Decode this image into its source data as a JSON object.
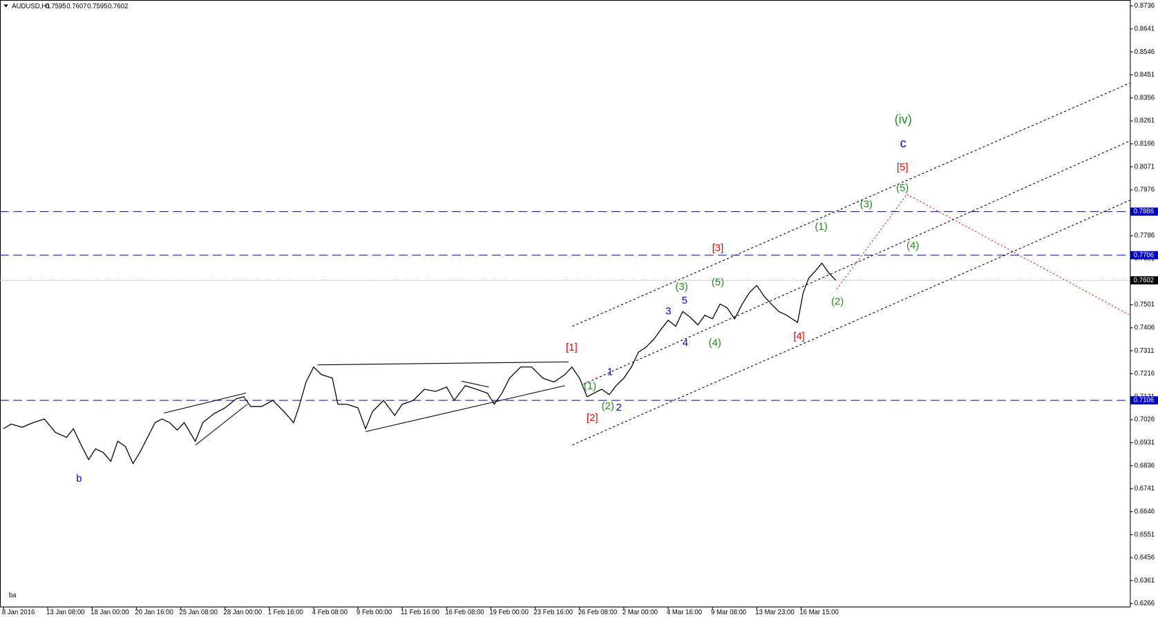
{
  "header": {
    "symbol": "AUDUSD,H1",
    "quote": [
      0.7595,
      0.7607,
      0.7595,
      0.7602
    ]
  },
  "footer": {
    "text": "ba"
  },
  "chart_data": {
    "type": "line",
    "x": [
      0,
      11,
      27,
      43,
      59,
      75,
      91,
      101,
      112,
      123,
      133,
      144,
      155,
      165,
      176,
      187,
      197,
      208,
      219,
      229,
      240,
      251,
      261,
      277,
      288,
      304,
      320,
      336,
      347,
      357,
      373,
      389,
      405,
      419,
      427,
      437,
      448,
      459,
      475,
      483,
      496,
      512,
      523,
      533,
      549,
      565,
      576,
      592,
      608,
      624,
      640,
      651,
      667,
      683,
      699,
      709,
      720,
      731,
      747,
      763,
      779,
      795,
      811,
      821,
      832,
      843,
      853,
      864,
      875,
      885,
      896,
      907,
      917,
      928,
      939,
      949,
      960,
      971,
      981,
      992,
      1003,
      1013,
      1024,
      1035,
      1045,
      1056,
      1067,
      1077,
      1088,
      1099,
      1109,
      1120,
      1131,
      1147,
      1155,
      1163,
      1173,
      1182,
      1192,
      1202
    ],
    "series": [
      {
        "name": "AUDUSD,H1",
        "color": "#000000",
        "values": [
          0.6989,
          0.7008,
          0.6995,
          0.7014,
          0.7029,
          0.6974,
          0.6953,
          0.6989,
          0.6922,
          0.6861,
          0.6906,
          0.6891,
          0.6854,
          0.6937,
          0.6916,
          0.6845,
          0.6891,
          0.6953,
          0.7014,
          0.7029,
          0.7014,
          0.6983,
          0.7014,
          0.6937,
          0.7014,
          0.7051,
          0.7075,
          0.7112,
          0.7121,
          0.7081,
          0.7081,
          0.7106,
          0.706,
          0.7014,
          0.7081,
          0.7182,
          0.7244,
          0.7213,
          0.7198,
          0.709,
          0.709,
          0.7075,
          0.6989,
          0.706,
          0.7106,
          0.7044,
          0.709,
          0.7106,
          0.7152,
          0.7143,
          0.7161,
          0.7106,
          0.7167,
          0.7152,
          0.7136,
          0.709,
          0.7136,
          0.7198,
          0.7244,
          0.7244,
          0.7198,
          0.7182,
          0.7213,
          0.7244,
          0.7198,
          0.7121,
          0.7136,
          0.7152,
          0.713,
          0.7167,
          0.7198,
          0.7244,
          0.7305,
          0.7326,
          0.7357,
          0.7397,
          0.7437,
          0.7412,
          0.7473,
          0.7449,
          0.7418,
          0.7458,
          0.7443,
          0.7504,
          0.7489,
          0.7443,
          0.7504,
          0.755,
          0.7581,
          0.7535,
          0.7504,
          0.7473,
          0.7458,
          0.7428,
          0.755,
          0.7611,
          0.7642,
          0.7673,
          0.7633,
          0.7602
        ]
      }
    ],
    "xlim": [
      -5,
      1627
    ],
    "xticks": [
      {
        "value": 0,
        "label": "8 Jan 2016"
      },
      {
        "value": 64,
        "label": "13 Jan 08:00"
      },
      {
        "value": 128,
        "label": "18 Jan 00:00"
      },
      {
        "value": 192,
        "label": "20 Jan 16:00"
      },
      {
        "value": 256,
        "label": "25 Jan 08:00"
      },
      {
        "value": 320,
        "label": "28 Jan 00:00"
      },
      {
        "value": 384,
        "label": "1 Feb 16:00"
      },
      {
        "value": 448,
        "label": "4 Feb 08:00"
      },
      {
        "value": 512,
        "label": "9 Feb 00:00"
      },
      {
        "value": 576,
        "label": "11 Feb 16:00"
      },
      {
        "value": 640,
        "label": "16 Feb 08:00"
      },
      {
        "value": 704,
        "label": "19 Feb 00:00"
      },
      {
        "value": 768,
        "label": "23 Feb 16:00"
      },
      {
        "value": 832,
        "label": "26 Feb 08:00"
      },
      {
        "value": 896,
        "label": "2 Mar 00:00"
      },
      {
        "value": 960,
        "label": "4 Mar 16:00"
      },
      {
        "value": 1024,
        "label": "9 Mar 08:00"
      },
      {
        "value": 1088,
        "label": "13 Mar 23:00"
      },
      {
        "value": 1152,
        "label": "16 Mar 15:00"
      }
    ],
    "ylim": [
      0.6266,
      0.8736
    ],
    "yticks": [
      0.8736,
      0.8641,
      0.8546,
      0.8451,
      0.8356,
      0.8261,
      0.8166,
      0.8071,
      0.7976,
      0.7786,
      0.7691,
      0.7501,
      0.7406,
      0.7311,
      0.7216,
      0.7121,
      0.7026,
      0.6931,
      0.6836,
      0.6741,
      0.6646,
      0.6551,
      0.6456,
      0.6361,
      0.6266
    ],
    "levels": [
      {
        "value": 0.7886,
        "color": "#0000cc"
      },
      {
        "value": 0.7706,
        "color": "#0000cc"
      },
      {
        "value": 0.7106,
        "color": "#0000cc"
      },
      {
        "value": 0.7602,
        "color": "#000000"
      }
    ],
    "annotations": [
      {
        "text": "b",
        "color": "#0000ff"
      },
      {
        "text": "[1]",
        "color": "#ff0000"
      },
      {
        "text": "[2]",
        "color": "#ff0000"
      },
      {
        "text": "(1)",
        "color": "#228b22"
      },
      {
        "text": "(2)",
        "color": "#228b22"
      },
      {
        "text": "1",
        "color": "#0000ff"
      },
      {
        "text": "2",
        "color": "#0000ff"
      },
      {
        "text": "3",
        "color": "#0000ff"
      },
      {
        "text": "4",
        "color": "#0000ff"
      },
      {
        "text": "5",
        "color": "#0000ff"
      },
      {
        "text": "(3)",
        "color": "#228b22"
      },
      {
        "text": "(4)",
        "color": "#228b22"
      },
      {
        "text": "(5)",
        "color": "#228b22"
      },
      {
        "text": "[3]",
        "color": "#ff0000"
      },
      {
        "text": "[4]",
        "color": "#ff0000"
      },
      {
        "text": "(1)",
        "color": "#228b22"
      },
      {
        "text": "(2)",
        "color": "#228b22"
      },
      {
        "text": "(3)",
        "color": "#228b22"
      },
      {
        "text": "(4)",
        "color": "#228b22"
      },
      {
        "text": "(5)",
        "color": "#228b22"
      },
      {
        "text": "[5]",
        "color": "#ff0000"
      },
      {
        "text": "c",
        "color": "#0000ff"
      },
      {
        "text": "(iv)",
        "color": "#228b22"
      }
    ]
  }
}
